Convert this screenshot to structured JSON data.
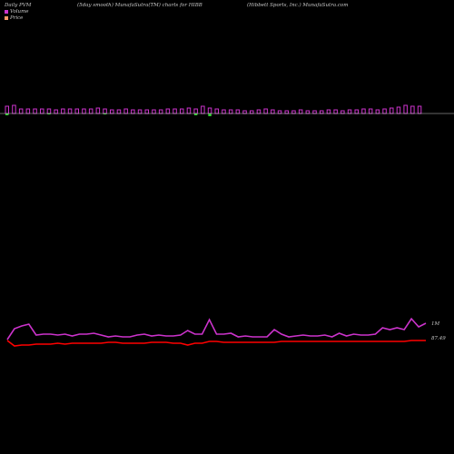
{
  "header": {
    "left": "Daily PVM",
    "middle": "(5day smooth) MunafaSutra(TM) charts for HIBB",
    "right": "(Hibbett Sports, Inc.) MunafaSutra.com"
  },
  "legend": [
    {
      "label": "Volume",
      "color": "#cc33cc"
    },
    {
      "label": "Price",
      "color": "#ff9966"
    }
  ],
  "chart_data": {
    "type": "bar",
    "volume_bars_up": [
      8,
      9,
      5,
      5,
      5,
      5,
      5,
      4,
      5,
      5,
      5,
      5,
      5,
      6,
      5,
      4,
      4,
      5,
      4,
      4,
      4,
      4,
      4,
      5,
      5,
      5,
      6,
      5,
      8,
      6,
      5,
      4,
      4,
      4,
      3,
      3,
      4,
      5,
      4,
      3,
      3,
      3,
      4,
      3,
      3,
      3,
      4,
      4,
      3,
      4,
      4,
      5,
      5,
      4,
      5,
      6,
      7,
      9,
      8,
      8
    ],
    "volume_bars_down": [
      2,
      0,
      0,
      0,
      0,
      0,
      1,
      0,
      0,
      0,
      0,
      0,
      0,
      0,
      1,
      0,
      0,
      0,
      0,
      0,
      0,
      0,
      0,
      0,
      0,
      0,
      0,
      2,
      0,
      3,
      0,
      0,
      0,
      0,
      0,
      0,
      0,
      0,
      0,
      0,
      0,
      0,
      0,
      0,
      0,
      0,
      0,
      0,
      0,
      0,
      0,
      0,
      0,
      0,
      0,
      0,
      0,
      0,
      0,
      0
    ],
    "pvm_line": [
      374,
      362,
      359,
      357,
      369,
      368,
      368,
      369,
      368,
      370,
      368,
      368,
      367,
      369,
      371,
      370,
      371,
      371,
      369,
      368,
      370,
      369,
      370,
      370,
      369,
      364,
      368,
      368,
      352,
      368,
      368,
      367,
      371,
      370,
      371,
      371,
      371,
      363,
      368,
      371,
      370,
      369,
      370,
      370,
      369,
      371,
      367,
      370,
      368,
      369,
      369,
      368,
      361,
      363,
      361,
      363,
      351,
      360,
      356
    ],
    "price_line": [
      375,
      381,
      380,
      380,
      379,
      379,
      379,
      378,
      379,
      378,
      378,
      378,
      378,
      378,
      377,
      377,
      378,
      378,
      378,
      378,
      377,
      377,
      377,
      378,
      378,
      380,
      378,
      378,
      376,
      376,
      377,
      377,
      377,
      377,
      377,
      377,
      377,
      377,
      376,
      376,
      376,
      376,
      376,
      376,
      376,
      376,
      376,
      376,
      376,
      376,
      376,
      376,
      376,
      376,
      376,
      376,
      375,
      375,
      375
    ],
    "right_labels": [
      "1M",
      "87.49"
    ]
  },
  "colors": {
    "volume_up": "#cc33cc",
    "volume_down": "#33cc33",
    "pvm_line": "#cc33cc",
    "price_line": "#ff0000",
    "baseline": "#cccccc"
  }
}
